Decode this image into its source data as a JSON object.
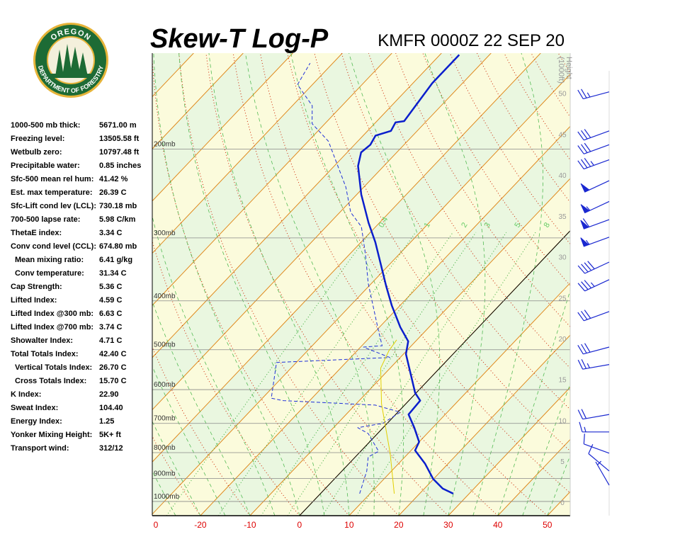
{
  "header": {
    "title": "Skew-T Log-P",
    "station": "KMFR 0000Z 22 SEP 20"
  },
  "logo": {
    "top": "OREGON",
    "bottom": "DEPARTMENT OF FORESTRY"
  },
  "indices": [
    {
      "label": "1000-500 mb thick:",
      "value": "5671.00 m"
    },
    {
      "label": "Freezing level:",
      "value": "13505.58 ft"
    },
    {
      "label": "Wetbulb zero:",
      "value": "10797.48 ft"
    },
    {
      "label": "Precipitable water:",
      "value": "0.85 inches"
    },
    {
      "label": "Sfc-500 mean rel hum:",
      "value": "41.42 %"
    },
    {
      "label": "Est. max temperature:",
      "value": "26.39 C"
    },
    {
      "label": "Sfc-Lift cond lev (LCL):",
      "value": "730.18 mb"
    },
    {
      "label": "700-500 lapse rate:",
      "value": "5.98 C/km"
    },
    {
      "label": "ThetaE index:",
      "value": "3.34 C"
    },
    {
      "label": "Conv cond level (CCL):",
      "value": "674.80 mb"
    },
    {
      "label": "Mean mixing ratio:",
      "value": "6.41 g/kg",
      "indent": true
    },
    {
      "label": "Conv temperature:",
      "value": "31.34 C",
      "indent": true
    },
    {
      "label": "Cap Strength:",
      "value": "5.36 C"
    },
    {
      "label": "Lifted Index:",
      "value": "4.59 C"
    },
    {
      "label": "Lifted Index @300 mb:",
      "value": "6.63 C"
    },
    {
      "label": "Lifted Index @700 mb:",
      "value": "3.74 C"
    },
    {
      "label": "Showalter Index:",
      "value": "4.71 C"
    },
    {
      "label": "Total Totals Index:",
      "value": "42.40 C"
    },
    {
      "label": "Vertical Totals Index:",
      "value": "26.70 C",
      "indent": true
    },
    {
      "label": "Cross Totals Index:",
      "value": "15.70 C",
      "indent": true
    },
    {
      "label": "K Index:",
      "value": "22.90"
    },
    {
      "label": "Sweat Index:",
      "value": "104.40"
    },
    {
      "label": "Energy Index:",
      "value": "1.25"
    },
    {
      "label": "Yonker Mixing Height:",
      "value": "5K+ ft"
    },
    {
      "label": "Transport wind:",
      "value": "312/12"
    }
  ],
  "chart_data": {
    "type": "skew-t",
    "xlim": [
      -29.7,
      54.6
    ],
    "xticks": [
      {
        "value": -30,
        "label": "0"
      },
      -20,
      -10,
      0,
      10,
      20,
      30,
      40,
      50
    ],
    "ylim": [
      1067,
      129
    ],
    "log_y": true,
    "yticks": [
      {
        "value": 1000,
        "label": "1000mb"
      },
      {
        "value": 900,
        "label": "900mb"
      },
      {
        "value": 800,
        "label": "800mb"
      },
      {
        "value": 700,
        "label": "700mb"
      },
      {
        "value": 600,
        "label": "600mb"
      },
      {
        "value": 500,
        "label": "500mb"
      },
      {
        "value": 400,
        "label": "400mb"
      },
      {
        "value": 300,
        "label": "300mb"
      },
      {
        "value": 200,
        "label": "200mb"
      }
    ],
    "y2label": [
      "Height",
      "(1000ft)"
    ],
    "y2lim": [
      -1.65,
      54.9
    ],
    "y2ticks": [
      0,
      5,
      10,
      15,
      20,
      25,
      30,
      35,
      40,
      45,
      50
    ],
    "mixing_ratios": [
      0.4,
      1,
      2,
      3,
      5,
      8
    ],
    "freezing_isotherm": 0,
    "series": [
      {
        "color": "#0a1ecc",
        "line_style": "solid",
        "line_width": 2.5,
        "pressure": [
          965,
          943,
          902,
          842,
          792,
          762,
          714,
          672,
          631,
          609,
          510,
          481,
          451,
          409,
          374,
          306,
          280,
          246,
          216,
          203,
          196,
          188,
          184,
          177,
          176,
          148,
          130
        ],
        "temperature": [
          26.8,
          23.7,
          19.9,
          15.4,
          10.8,
          10.0,
          6.3,
          2.6,
          2.3,
          -0.2,
          -9.5,
          -11.5,
          -15.8,
          -21.6,
          -26.5,
          -37.1,
          -42.2,
          -49.1,
          -55.2,
          -57.2,
          -56.8,
          -57.5,
          -55.3,
          -56.0,
          -54.5,
          -56.1,
          -56.1
        ]
      },
      {
        "color": "#2030d8",
        "line_style": "dashed",
        "line_width": 1,
        "pressure": [
          965,
          870,
          816,
          795,
          733,
          714,
          700,
          665,
          644,
          631,
          624,
          530,
          518,
          494,
          491,
          456,
          369,
          324,
          285,
          267,
          238,
          193,
          178,
          164,
          149,
          135
        ],
        "temperature": [
          7.9,
          5.0,
          2.6,
          3.6,
          -1.9,
          -5.1,
          -0.9,
          0.5,
          -5.9,
          -25.3,
          -28.2,
          -34.0,
          -12.1,
          -19.4,
          -15.9,
          -19.8,
          -30.7,
          -36.7,
          -42.9,
          -47.8,
          -53.6,
          -65.9,
          -72.6,
          -76.0,
          -83.0,
          -84.6
        ]
      },
      {
        "color": "#e2cf00",
        "line_style": "solid",
        "line_width": 1,
        "pressure": [
          965,
          802,
          705,
          640,
          544,
          502,
          478
        ],
        "temperature": [
          14.9,
          6.3,
          -0.1,
          -4.9,
          -11.9,
          -13.6,
          -14.1
        ]
      }
    ],
    "winds": {
      "pressure": [
        154,
        184,
        196,
        210,
        231,
        254,
        276,
        299,
        335,
        363,
        420,
        494,
        535,
        672,
        728,
        802,
        870,
        928
      ],
      "direction": [
        255,
        250,
        250,
        250,
        245,
        245,
        250,
        250,
        245,
        245,
        250,
        255,
        260,
        260,
        270,
        290,
        310,
        330
      ],
      "speed": [
        25,
        30,
        30,
        35,
        50,
        55,
        60,
        55,
        40,
        35,
        30,
        30,
        25,
        20,
        15,
        10,
        10,
        5
      ],
      "color": "#1a28d0"
    }
  }
}
